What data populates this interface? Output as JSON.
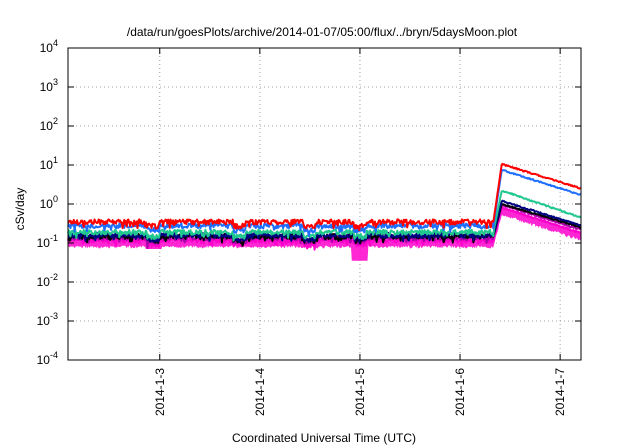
{
  "chart_data": {
    "type": "line",
    "title": "/data/run/goesPlots/archive/2014-01-07/05:00/flux/../bryn/5daysMoon.plot",
    "xlabel": "Coordinated Universal Time (UTC)",
    "ylabel": "cSv/day",
    "y_scale": "log",
    "ylim": [
      0.0001,
      10000
    ],
    "y_ticks": [
      {
        "base": "10",
        "exp": "-4"
      },
      {
        "base": "10",
        "exp": "-3"
      },
      {
        "base": "10",
        "exp": "-2"
      },
      {
        "base": "10",
        "exp": "-1"
      },
      {
        "base": "10",
        "exp": "0"
      },
      {
        "base": "10",
        "exp": "1"
      },
      {
        "base": "10",
        "exp": "2"
      },
      {
        "base": "10",
        "exp": "3"
      },
      {
        "base": "10",
        "exp": "4"
      }
    ],
    "x_domain": [
      "2014-01-02T02:00",
      "2014-01-07T05:00"
    ],
    "x_ticks": [
      {
        "label": "2014-1-3",
        "t": "2014-01-03T00:00"
      },
      {
        "label": "2014-1-4",
        "t": "2014-01-04T00:00"
      },
      {
        "label": "2014-1-5",
        "t": "2014-01-05T00:00"
      },
      {
        "label": "2014-1-6",
        "t": "2014-01-06T00:00"
      },
      {
        "label": "2014-1-7",
        "t": "2014-01-07T00:00"
      }
    ],
    "grid": true,
    "event": {
      "onset": "2014-01-06T08:00",
      "peak": "2014-01-06T10:00"
    },
    "series": [
      {
        "color": "#ff0000",
        "baseline": 0.35,
        "peak": 10.5,
        "end": 2.5
      },
      {
        "color": "#1e6fff",
        "baseline": 0.28,
        "peak": 7.5,
        "end": 1.7
      },
      {
        "color": "#20c890",
        "baseline": 0.19,
        "peak": 2.2,
        "end": 0.45
      },
      {
        "color": "#000080",
        "baseline": 0.16,
        "peak": 1.2,
        "end": 0.28
      },
      {
        "color": "#000000",
        "baseline": 0.15,
        "peak": 1.0,
        "end": 0.25
      },
      {
        "color": "#aa00aa",
        "baseline": 0.14,
        "peak": 0.95,
        "end": 0.22
      },
      {
        "color": "#ff00cc",
        "baseline": 0.12,
        "peak": 0.8,
        "end": 0.18
      }
    ],
    "dips": [
      {
        "t": "2014-01-02T22:30",
        "value": 0.07
      },
      {
        "t": "2014-01-03T19:00",
        "value": 0.1
      },
      {
        "t": "2014-01-05T00:00",
        "value": 0.035
      },
      {
        "t": "2014-01-04T12:00",
        "value": 0.09
      }
    ]
  }
}
